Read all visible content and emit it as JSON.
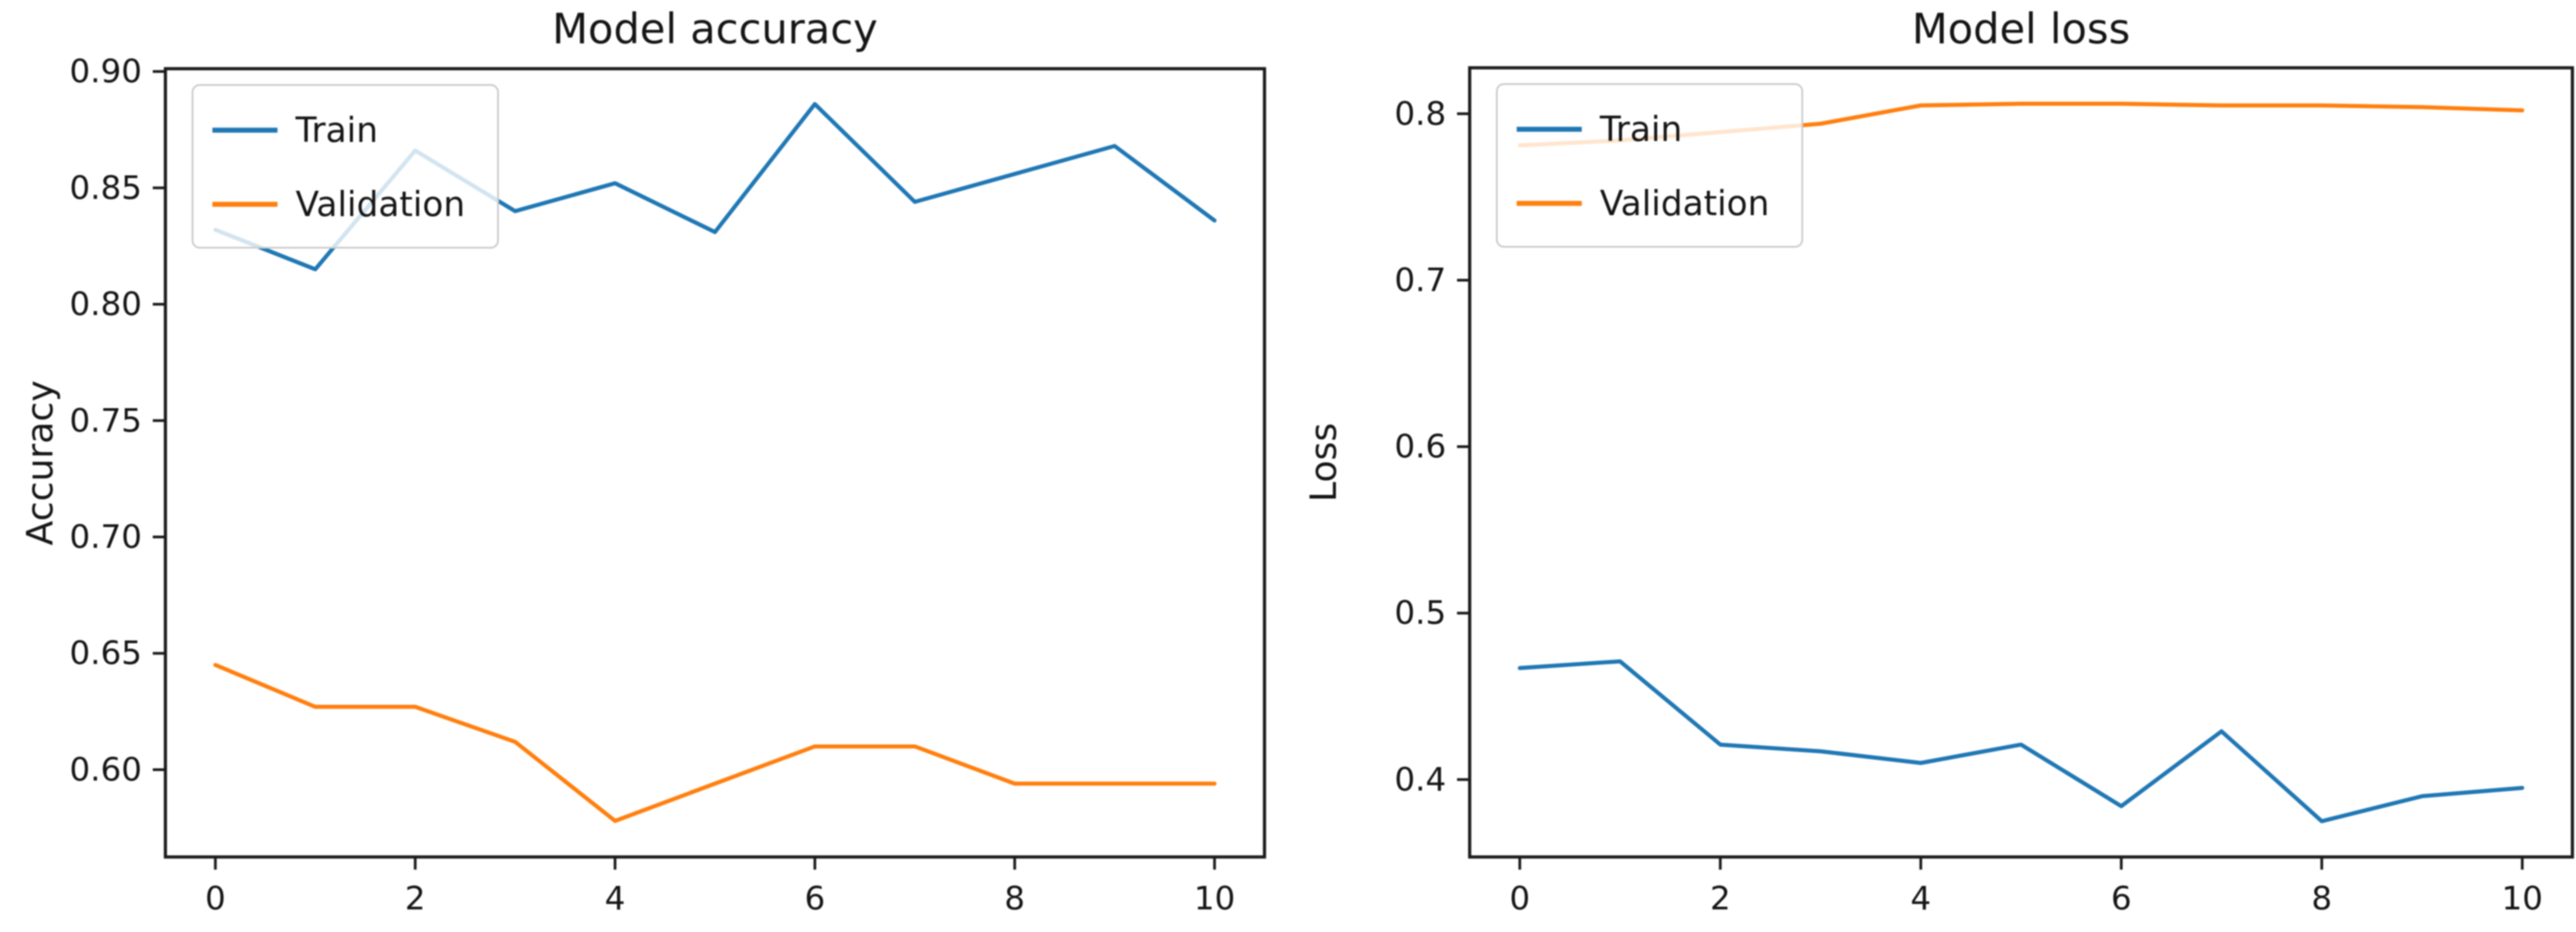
{
  "page": {
    "background": "#ffffff",
    "text_color": "#151515"
  },
  "chart_data": [
    {
      "type": "line",
      "title": "Model accuracy",
      "xlabel": "",
      "ylabel": "Accuracy",
      "x": [
        0,
        1,
        2,
        3,
        4,
        5,
        6,
        7,
        8,
        9,
        10
      ],
      "xlim": [
        -0.5,
        10.5
      ],
      "ylim": [
        0.5625,
        0.9012
      ],
      "xticks": [
        0,
        2,
        4,
        6,
        8,
        10
      ],
      "xtick_labels": [
        "0",
        "2",
        "4",
        "6",
        "8",
        "10"
      ],
      "yticks": [
        0.9,
        0.85,
        0.8,
        0.75,
        0.7,
        0.65,
        0.6
      ],
      "ytick_labels": [
        "0.90",
        "0.85",
        "0.80",
        "0.75",
        "0.70",
        "0.65",
        "0.60"
      ],
      "grid": false,
      "legend_position": "upper-left",
      "legend_entries": [
        "Train",
        "Validation"
      ],
      "series": [
        {
          "name": "Train",
          "color": "#1f77b4",
          "values": [
            0.832,
            0.815,
            0.866,
            0.84,
            0.852,
            0.831,
            0.886,
            0.844,
            0.856,
            0.868,
            0.836
          ]
        },
        {
          "name": "Validation",
          "color": "#ff7f0e",
          "values": [
            0.645,
            0.627,
            0.627,
            0.612,
            0.578,
            0.594,
            0.61,
            0.61,
            0.594,
            0.594,
            0.594
          ]
        }
      ]
    },
    {
      "type": "line",
      "title": "Model loss",
      "xlabel": "",
      "ylabel": "Loss",
      "x": [
        0,
        1,
        2,
        3,
        4,
        5,
        6,
        7,
        8,
        9,
        10
      ],
      "xlim": [
        -0.5,
        10.5
      ],
      "ylim": [
        0.3535,
        0.8276
      ],
      "xticks": [
        0,
        2,
        4,
        6,
        8,
        10
      ],
      "xtick_labels": [
        "0",
        "2",
        "4",
        "6",
        "8",
        "10"
      ],
      "yticks": [
        0.8,
        0.7,
        0.6,
        0.5,
        0.4
      ],
      "ytick_labels": [
        "0.8",
        "0.7",
        "0.6",
        "0.5",
        "0.4"
      ],
      "grid": false,
      "legend_position": "upper-left",
      "legend_entries": [
        "Train",
        "Validation"
      ],
      "series": [
        {
          "name": "Train",
          "color": "#1f77b4",
          "values": [
            0.467,
            0.471,
            0.421,
            0.417,
            0.41,
            0.421,
            0.384,
            0.429,
            0.375,
            0.39,
            0.395
          ]
        },
        {
          "name": "Validation",
          "color": "#ff7f0e",
          "values": [
            0.781,
            0.784,
            0.789,
            0.794,
            0.805,
            0.806,
            0.806,
            0.805,
            0.805,
            0.804,
            0.802
          ]
        }
      ]
    }
  ]
}
